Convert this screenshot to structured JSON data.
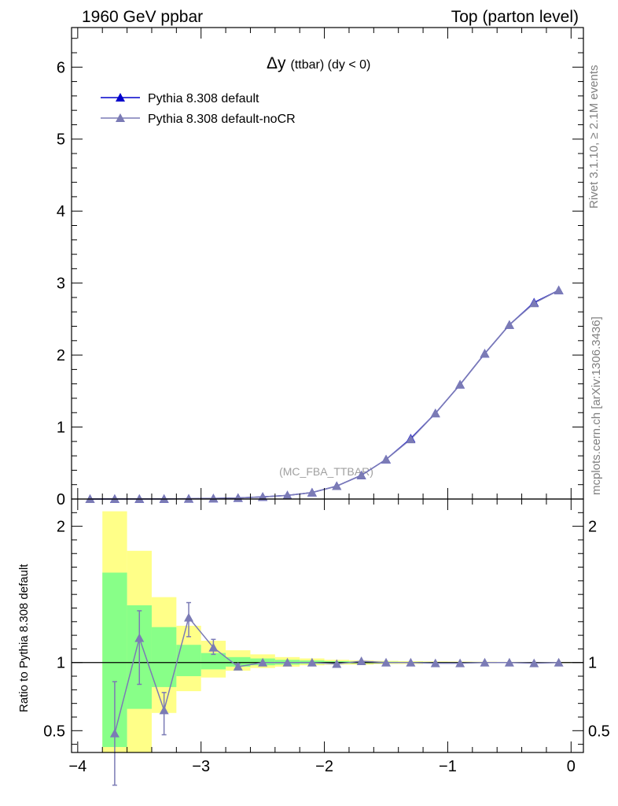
{
  "header": {
    "left": "1960 GeV ppbar",
    "right": "Top (parton level)"
  },
  "side_labels": {
    "rivet": "Rivet 3.1.10, ≥ 2.1M events",
    "mcplots": "mcplots.cern.ch [arXiv:1306.3436]"
  },
  "chart_data": [
    {
      "type": "line",
      "title": "Δy (ttbar) (dy < 0)",
      "title_main": "Δy",
      "title_rest": "(ttbar) (dy < 0)",
      "annotation": "(MC_FBA_TTBAR)",
      "xlim": [
        -4.05,
        0.1
      ],
      "ylim": [
        0,
        6.55
      ],
      "yticks": [
        0,
        1,
        2,
        3,
        4,
        5,
        6
      ],
      "grid": false,
      "legend_placement": "top-left",
      "x": [
        -3.9,
        -3.7,
        -3.5,
        -3.3,
        -3.1,
        -2.9,
        -2.7,
        -2.5,
        -2.3,
        -2.1,
        -1.9,
        -1.7,
        -1.5,
        -1.3,
        -1.1,
        -0.9,
        -0.7,
        -0.5,
        -0.3,
        -0.1
      ],
      "series": [
        {
          "name": "Pythia 8.308 default",
          "color": "#0000cc",
          "values": [
            0.0,
            0.001,
            0.001,
            0.002,
            0.004,
            0.008,
            0.015,
            0.03,
            0.05,
            0.09,
            0.18,
            0.33,
            0.55,
            0.84,
            1.19,
            1.59,
            2.02,
            2.42,
            2.73,
            2.9
          ]
        },
        {
          "name": "Pythia 8.308 default-noCR",
          "color": "#7b7bb5",
          "values": [
            0.0,
            0.001,
            0.001,
            0.002,
            0.004,
            0.008,
            0.015,
            0.03,
            0.05,
            0.09,
            0.18,
            0.33,
            0.55,
            0.83,
            1.19,
            1.59,
            2.02,
            2.42,
            2.72,
            2.9
          ]
        }
      ]
    },
    {
      "type": "line",
      "ylabel": "Ratio to Pythia 8.308 default",
      "xlim": [
        -4.05,
        0.1
      ],
      "ylim": [
        0.34,
        2.2
      ],
      "xticks": [
        -4,
        -3,
        -2,
        -1,
        0
      ],
      "xtick_labels": [
        "−4",
        "−3",
        "−2",
        "−1",
        "0"
      ],
      "yticks": [
        0.5,
        1,
        2
      ],
      "ytick_labels": [
        "0.5",
        "1",
        "2"
      ],
      "reference_line": 1,
      "bands": {
        "bin_edges": [
          -3.8,
          -3.6,
          -3.4,
          -3.2,
          -3.0,
          -2.8,
          -2.6,
          -2.4,
          -2.2,
          -2.0,
          -1.8,
          -1.6,
          -1.4,
          -1.2,
          -1.0,
          -0.8,
          -0.6,
          -0.4,
          -0.2,
          0.0
        ],
        "yellow_color": "#ffff88",
        "green_color": "#88ff88",
        "yellow_lo": [
          0.34,
          0.34,
          0.63,
          0.79,
          0.89,
          0.94,
          0.96,
          0.97,
          0.98,
          0.985,
          0.985,
          0.99,
          0.99,
          0.993,
          0.994,
          0.995,
          0.996,
          0.997,
          0.997
        ],
        "yellow_hi": [
          2.11,
          1.82,
          1.48,
          1.27,
          1.16,
          1.09,
          1.06,
          1.04,
          1.03,
          1.02,
          1.015,
          1.012,
          1.01,
          1.008,
          1.007,
          1.006,
          1.005,
          1.004,
          1.004
        ],
        "green_lo": [
          0.38,
          0.66,
          0.82,
          0.9,
          0.95,
          0.97,
          0.98,
          0.985,
          0.99,
          0.993,
          0.994,
          0.995,
          0.996,
          0.997,
          0.997,
          0.998,
          0.998,
          0.998,
          0.998
        ],
        "green_hi": [
          1.66,
          1.42,
          1.26,
          1.13,
          1.07,
          1.04,
          1.03,
          1.02,
          1.015,
          1.01,
          1.008,
          1.006,
          1.005,
          1.004,
          1.003,
          1.003,
          1.002,
          1.002,
          1.002
        ]
      },
      "series": [
        {
          "name": "Pythia 8.308 default-noCR",
          "color": "#7b7bb5",
          "x": [
            -3.7,
            -3.5,
            -3.3,
            -3.1,
            -2.9,
            -2.7,
            -2.5,
            -2.3,
            -2.1,
            -1.9,
            -1.7,
            -1.5,
            -1.3,
            -1.1,
            -0.9,
            -0.7,
            -0.5,
            -0.3,
            -0.1
          ],
          "values": [
            0.48,
            1.18,
            0.65,
            1.33,
            1.11,
            0.97,
            1.0,
            1.0,
            1.0,
            0.99,
            1.01,
            1.0,
            1.0,
            0.995,
            0.995,
            1.0,
            1.0,
            0.995,
            1.0
          ],
          "err_lo": [
            0.38,
            0.34,
            0.18,
            0.14,
            0.05,
            0.02,
            0.01,
            0.005,
            0.005,
            0.005,
            0.005,
            0.003,
            0.003,
            0.002,
            0.002,
            0.002,
            0.002,
            0.002,
            0.002
          ],
          "err_hi": [
            0.38,
            0.2,
            0.13,
            0.11,
            0.06,
            0.02,
            0.01,
            0.005,
            0.005,
            0.005,
            0.005,
            0.003,
            0.003,
            0.002,
            0.002,
            0.002,
            0.002,
            0.002,
            0.002
          ]
        }
      ]
    }
  ]
}
